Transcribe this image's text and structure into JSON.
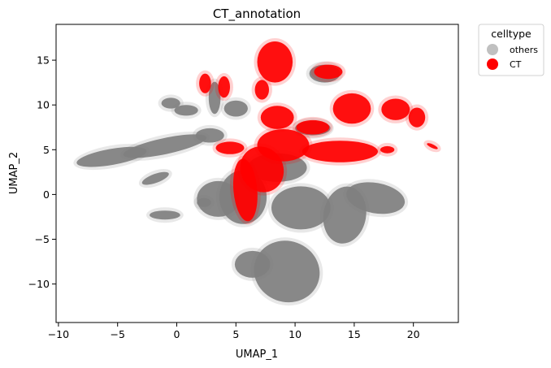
{
  "chart_data": {
    "type": "scatter",
    "title": "CT_annotation",
    "xlabel": "UMAP_1",
    "ylabel": "UMAP_2",
    "xlim": [
      -10.2,
      23.8
    ],
    "ylim": [
      -14.3,
      19.0
    ],
    "xticks": [
      -10,
      -5,
      0,
      5,
      10,
      15,
      20
    ],
    "yticks": [
      -10,
      -5,
      0,
      5,
      10,
      15
    ],
    "grid": false,
    "legend": {
      "title": "celltype",
      "placement": "outside-top-right",
      "entries": [
        {
          "label": "others",
          "color": "#c0c0c0"
        },
        {
          "label": "CT",
          "color": "#ff0000"
        }
      ]
    },
    "series": [
      {
        "name": "others",
        "color": "#808080",
        "clusters": [
          {
            "cx": -5.5,
            "cy": 4.2,
            "rx": 3.0,
            "ry": 0.9,
            "angle": 10
          },
          {
            "cx": -1.0,
            "cy": 5.4,
            "rx": 3.6,
            "ry": 0.9,
            "angle": 12
          },
          {
            "cx": 2.8,
            "cy": 6.6,
            "rx": 1.2,
            "ry": 0.8,
            "angle": 0
          },
          {
            "cx": -0.5,
            "cy": 10.2,
            "rx": 0.8,
            "ry": 0.6,
            "angle": 0
          },
          {
            "cx": 0.8,
            "cy": 9.4,
            "rx": 1.0,
            "ry": 0.6,
            "angle": 0
          },
          {
            "cx": 3.2,
            "cy": 10.8,
            "rx": 0.5,
            "ry": 1.8,
            "angle": 0
          },
          {
            "cx": 5.0,
            "cy": 9.6,
            "rx": 1.0,
            "ry": 0.9,
            "angle": 0
          },
          {
            "cx": 3.5,
            "cy": -0.5,
            "rx": 1.8,
            "ry": 2.0,
            "angle": 0
          },
          {
            "cx": 5.6,
            "cy": -0.3,
            "rx": 2.0,
            "ry": 3.0,
            "angle": 0
          },
          {
            "cx": 10.5,
            "cy": -1.5,
            "rx": 2.5,
            "ry": 2.4,
            "angle": 0
          },
          {
            "cx": 14.2,
            "cy": -2.3,
            "rx": 1.8,
            "ry": 3.2,
            "angle": -10
          },
          {
            "cx": 16.8,
            "cy": -0.4,
            "rx": 2.5,
            "ry": 1.7,
            "angle": -10
          },
          {
            "cx": 9.3,
            "cy": -8.6,
            "rx": 2.8,
            "ry": 3.4,
            "angle": -20
          },
          {
            "cx": 6.4,
            "cy": -7.8,
            "rx": 1.5,
            "ry": 1.5,
            "angle": 0
          },
          {
            "cx": -1.8,
            "cy": 1.8,
            "rx": 1.2,
            "ry": 0.5,
            "angle": 20
          },
          {
            "cx": -1.0,
            "cy": -2.3,
            "rx": 1.3,
            "ry": 0.5,
            "angle": 0
          },
          {
            "cx": 2.3,
            "cy": -0.9,
            "rx": 0.6,
            "ry": 0.5,
            "angle": 0
          },
          {
            "cx": 8.5,
            "cy": 3.0,
            "rx": 2.5,
            "ry": 1.6,
            "angle": 0
          },
          {
            "cx": 12.5,
            "cy": 13.5,
            "rx": 1.3,
            "ry": 1.0,
            "angle": 0
          },
          {
            "cx": 11.5,
            "cy": 7.4,
            "rx": 1.5,
            "ry": 0.8,
            "angle": 0
          }
        ]
      },
      {
        "name": "CT",
        "color": "#ff0000",
        "clusters": [
          {
            "cx": 8.3,
            "cy": 14.8,
            "rx": 1.5,
            "ry": 2.3,
            "angle": 0
          },
          {
            "cx": 7.2,
            "cy": 11.7,
            "rx": 0.6,
            "ry": 1.1,
            "angle": 0
          },
          {
            "cx": 2.4,
            "cy": 12.4,
            "rx": 0.5,
            "ry": 1.1,
            "angle": 0
          },
          {
            "cx": 4.0,
            "cy": 12.0,
            "rx": 0.5,
            "ry": 1.2,
            "angle": 0
          },
          {
            "cx": 12.8,
            "cy": 13.7,
            "rx": 1.2,
            "ry": 0.8,
            "angle": 0
          },
          {
            "cx": 14.8,
            "cy": 9.6,
            "rx": 1.6,
            "ry": 1.7,
            "angle": 0
          },
          {
            "cx": 11.5,
            "cy": 7.5,
            "rx": 1.4,
            "ry": 0.8,
            "angle": 0
          },
          {
            "cx": 18.5,
            "cy": 9.5,
            "rx": 1.2,
            "ry": 1.2,
            "angle": 0
          },
          {
            "cx": 20.3,
            "cy": 8.6,
            "rx": 0.7,
            "ry": 1.1,
            "angle": 0
          },
          {
            "cx": 13.8,
            "cy": 4.8,
            "rx": 3.2,
            "ry": 1.2,
            "angle": 0
          },
          {
            "cx": 9.0,
            "cy": 5.5,
            "rx": 2.2,
            "ry": 1.8,
            "angle": 0
          },
          {
            "cx": 7.2,
            "cy": 2.8,
            "rx": 1.8,
            "ry": 2.6,
            "angle": 30
          },
          {
            "cx": 5.8,
            "cy": 0.5,
            "rx": 1.0,
            "ry": 3.5,
            "angle": 5
          },
          {
            "cx": 8.5,
            "cy": 8.6,
            "rx": 1.4,
            "ry": 1.3,
            "angle": 0
          },
          {
            "cx": 4.5,
            "cy": 5.2,
            "rx": 1.2,
            "ry": 0.7,
            "angle": 0
          },
          {
            "cx": 17.8,
            "cy": 5.0,
            "rx": 0.6,
            "ry": 0.4,
            "angle": 0
          },
          {
            "cx": 21.6,
            "cy": 5.4,
            "rx": 0.5,
            "ry": 0.2,
            "angle": -25
          }
        ]
      }
    ]
  }
}
